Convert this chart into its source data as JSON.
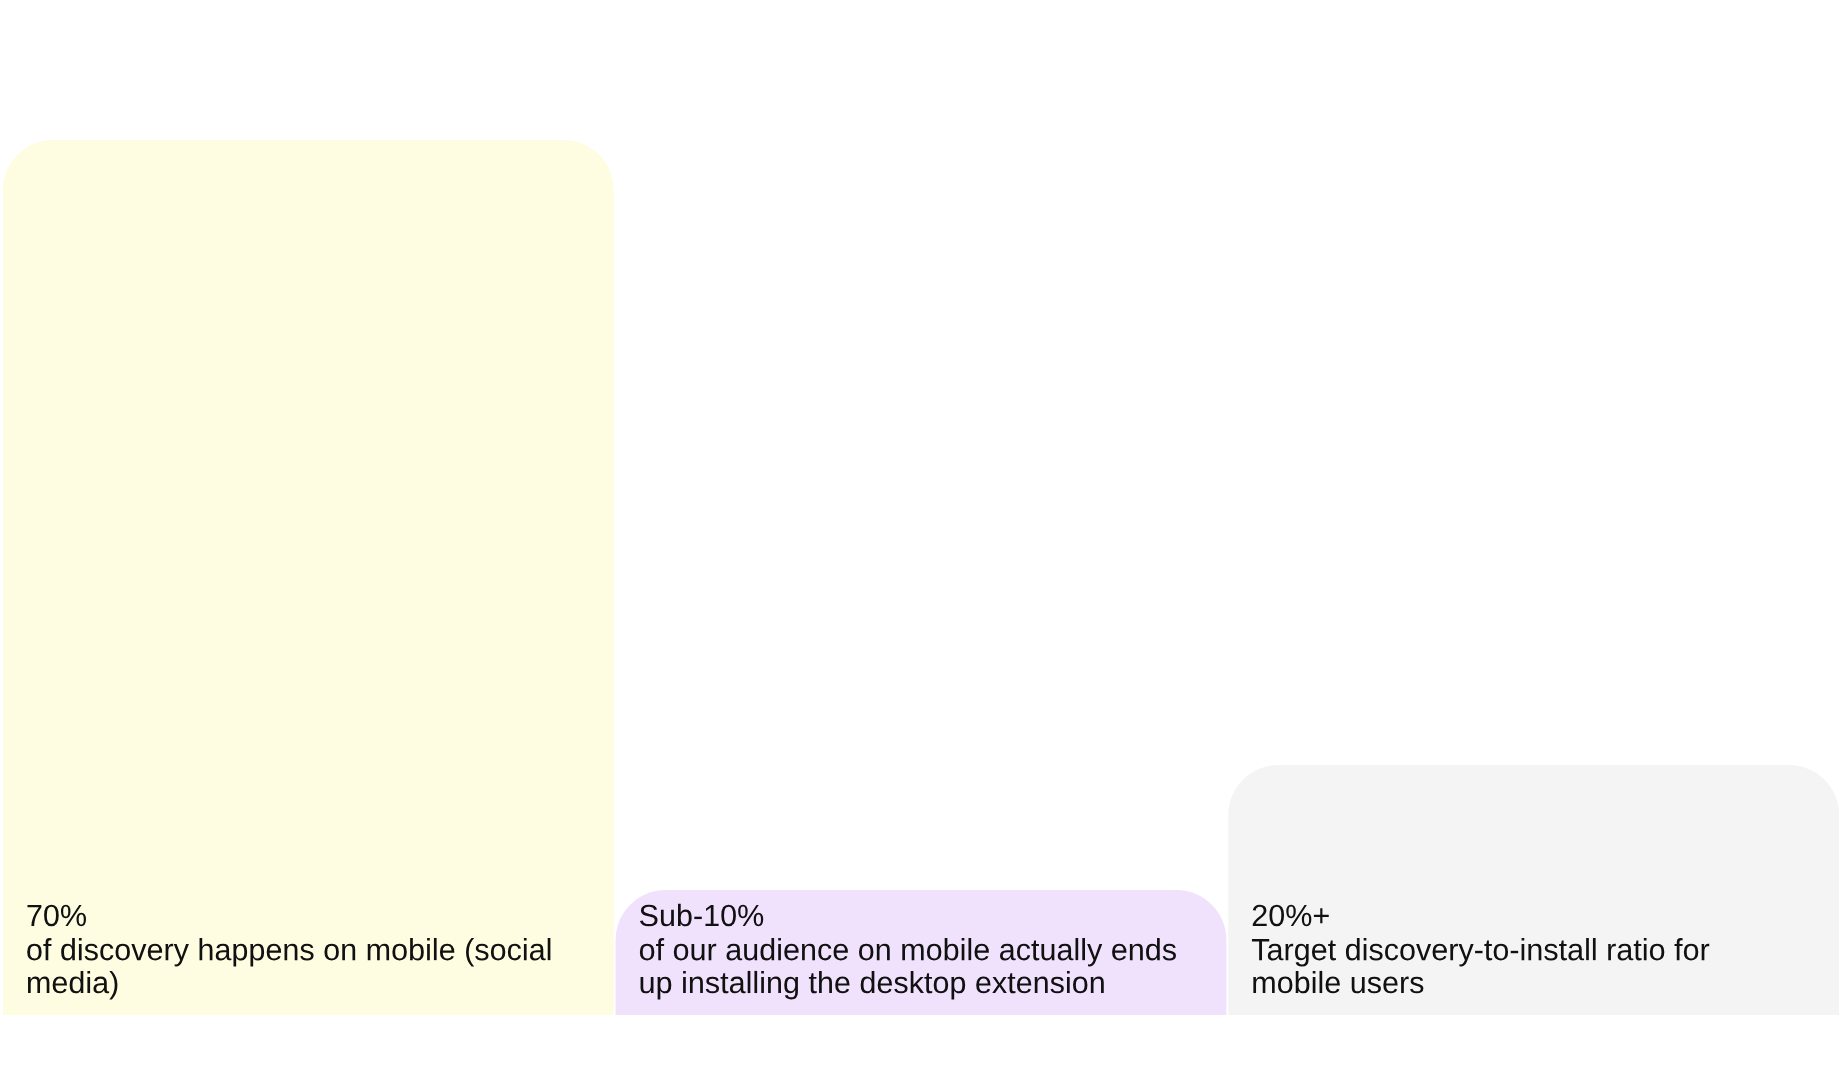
{
  "chart_data": {
    "type": "bar",
    "categories": [
      "of discovery happens on mobile (social media)",
      "of our audience on mobile actually ends up installing the desktop extension",
      "Target discovery-to-install ratio for mobile users"
    ],
    "values": [
      70,
      10,
      20
    ],
    "colors": [
      "#fefde1",
      "#f0e1fd",
      "#f4f4f4"
    ],
    "value_labels": [
      "70%",
      "Sub-10%",
      "20%+"
    ]
  }
}
